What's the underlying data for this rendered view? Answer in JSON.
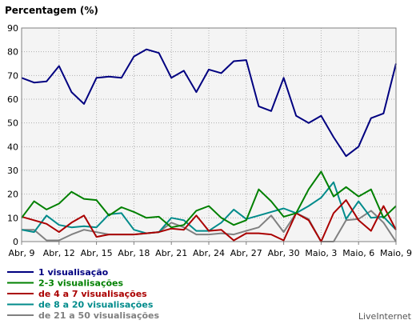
{
  "chart_data": {
    "type": "line",
    "title": "Percentagem (%)",
    "xlabel": "",
    "ylabel": "",
    "ylim": [
      0,
      90
    ],
    "yticks": [
      0,
      10,
      20,
      30,
      40,
      50,
      60,
      70,
      80,
      90
    ],
    "grid": true,
    "x_tick_labels": [
      "Abr, 9",
      "Abr, 12",
      "Abr, 15",
      "Abr, 18",
      "Abr, 21",
      "Abr, 24",
      "Abr, 27",
      "Abr, 30",
      "Maio, 3",
      "Maio, 6",
      "Maio, 9"
    ],
    "x_tick_positions": [
      0,
      3,
      6,
      9,
      12,
      15,
      18,
      21,
      24,
      27,
      30
    ],
    "x": [
      0,
      1,
      2,
      3,
      4,
      5,
      6,
      7,
      8,
      9,
      10,
      11,
      12,
      13,
      14,
      15,
      16,
      17,
      18,
      19,
      20,
      21,
      22,
      23,
      24,
      25,
      26,
      27,
      28,
      29,
      30
    ],
    "series": [
      {
        "name": "1 visualisação",
        "color": "#000080",
        "values": [
          69,
          67,
          67.5,
          74,
          63,
          58,
          69,
          69.5,
          69,
          78,
          81,
          79.5,
          69,
          72,
          63,
          72.5,
          71,
          76,
          76.5,
          57,
          55,
          69,
          53,
          50,
          53,
          44,
          36,
          40,
          52,
          54,
          75
        ]
      },
      {
        "name": "2-3 visualisações",
        "color": "#008000",
        "values": [
          10,
          17,
          13.5,
          16,
          21,
          18,
          17.5,
          11,
          14.5,
          12.5,
          10,
          10.5,
          6,
          7,
          13,
          15,
          10,
          7,
          9,
          22,
          17,
          10.5,
          12,
          22,
          29.5,
          19,
          23,
          19,
          22,
          10,
          15
        ]
      },
      {
        "name": "de 4 a 7 visualisações",
        "color": "#aa0000",
        "values": [
          10.5,
          9,
          7.5,
          4,
          8,
          11,
          2,
          3,
          3,
          3,
          3.5,
          4,
          5.5,
          5,
          11,
          4.5,
          5,
          0.5,
          3.5,
          3.5,
          3,
          0.5,
          12,
          9,
          0,
          12,
          17.5,
          9,
          4.5,
          15,
          5
        ]
      },
      {
        "name": "de 8 a 20 visualisações",
        "color": "#008b8b",
        "values": [
          5,
          4,
          11,
          7,
          6,
          6.5,
          6,
          11.5,
          12,
          5,
          3.5,
          4,
          10,
          9,
          4.5,
          4.5,
          8,
          13.5,
          9.5,
          11,
          12.5,
          14,
          12,
          15,
          18.5,
          25,
          9.5,
          17,
          10,
          10.5,
          5
        ]
      },
      {
        "name": "de 21 a 50 visualisações",
        "color": "#808080",
        "values": [
          5,
          5,
          0.5,
          0.5,
          3,
          5,
          4,
          3,
          3,
          3,
          3.5,
          4,
          8,
          6,
          3,
          3,
          3.5,
          3,
          4.5,
          6,
          11,
          4,
          12,
          9.5,
          0,
          0,
          9,
          9.5,
          13,
          8,
          0
        ]
      }
    ],
    "legend_position": "bottom-left",
    "credit": "LiveInternet"
  }
}
